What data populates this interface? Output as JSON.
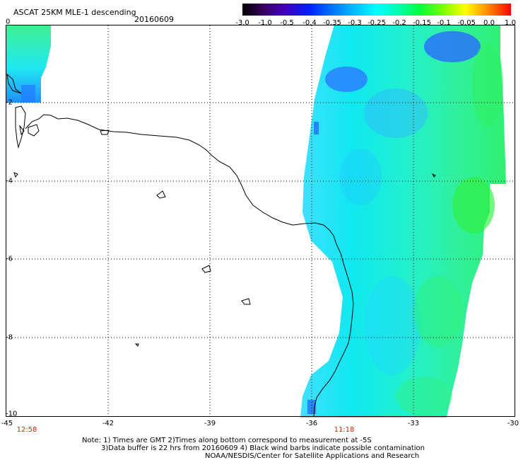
{
  "title": "ASCAT 25KM MLE-1 descending",
  "date": "20160609",
  "colorbar": {
    "ticks": [
      "-3.0",
      "-1.0",
      "-0.5",
      "-0.4",
      "-0.35",
      "-0.3",
      "-0.25",
      "-0.2",
      "-0.15",
      "-0.1",
      "-0.05",
      "0.0",
      "1.0"
    ],
    "colors": [
      "#000000",
      "#5a0080",
      "#3000c8",
      "#0030ff",
      "#0090ff",
      "#00d0ff",
      "#00ffe0",
      "#00ff90",
      "#30ff30",
      "#c0ff00",
      "#ffd000",
      "#ff6000",
      "#ff0000"
    ]
  },
  "map": {
    "lon_labels": [
      "-45",
      "-42",
      "-39",
      "-36",
      "-33",
      "-30"
    ],
    "lat_labels": [
      "0",
      "-2",
      "-4",
      "-6",
      "-8",
      "-10"
    ],
    "times": [
      "12:58",
      "11:18"
    ]
  },
  "notes": {
    "line1": "Note: 1) Times are GMT 2)Times along bottom correspond to measurement at -5S",
    "line2": "3)Data buffer is 22 hrs from 20160609 4) Black wind barbs indicate possible contamination",
    "line3": "NOAA/NESDIS/Center for Satellite Applications and Research"
  }
}
